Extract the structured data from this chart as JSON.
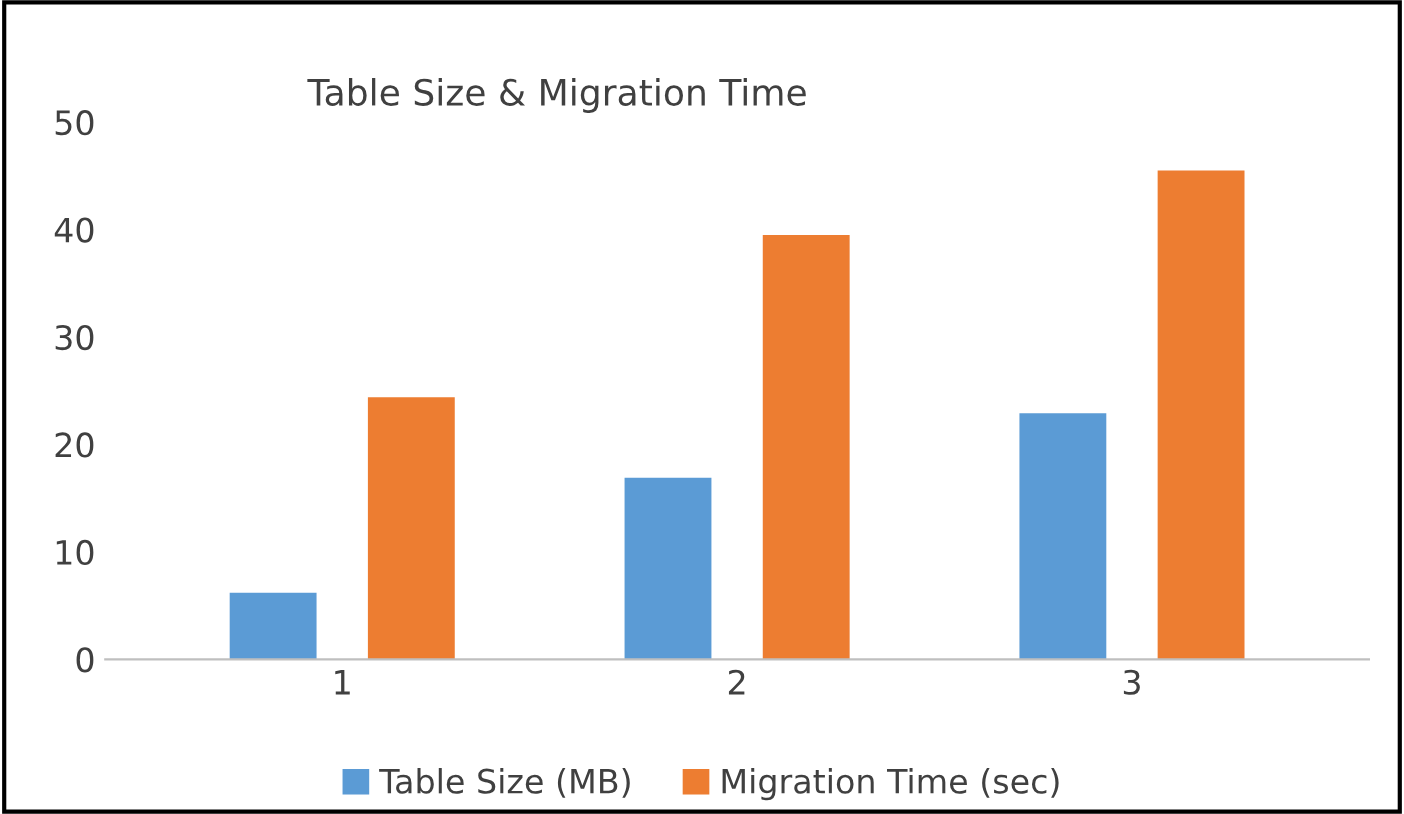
{
  "chart_data": {
    "type": "bar",
    "title": "Table Size & Migration Time",
    "categories": [
      "1",
      "2",
      "3"
    ],
    "series": [
      {
        "name": "Table Size (MB)",
        "color": "#5b9bd5",
        "values": [
          6.2,
          16.9,
          22.9
        ]
      },
      {
        "name": "Migration Time (sec)",
        "color": "#ed7d31",
        "values": [
          24.4,
          39.5,
          45.5
        ]
      }
    ],
    "ylim": [
      0,
      50
    ],
    "yticks": [
      0,
      10,
      20,
      30,
      40,
      50
    ],
    "grid": false,
    "legend": "bottom"
  }
}
